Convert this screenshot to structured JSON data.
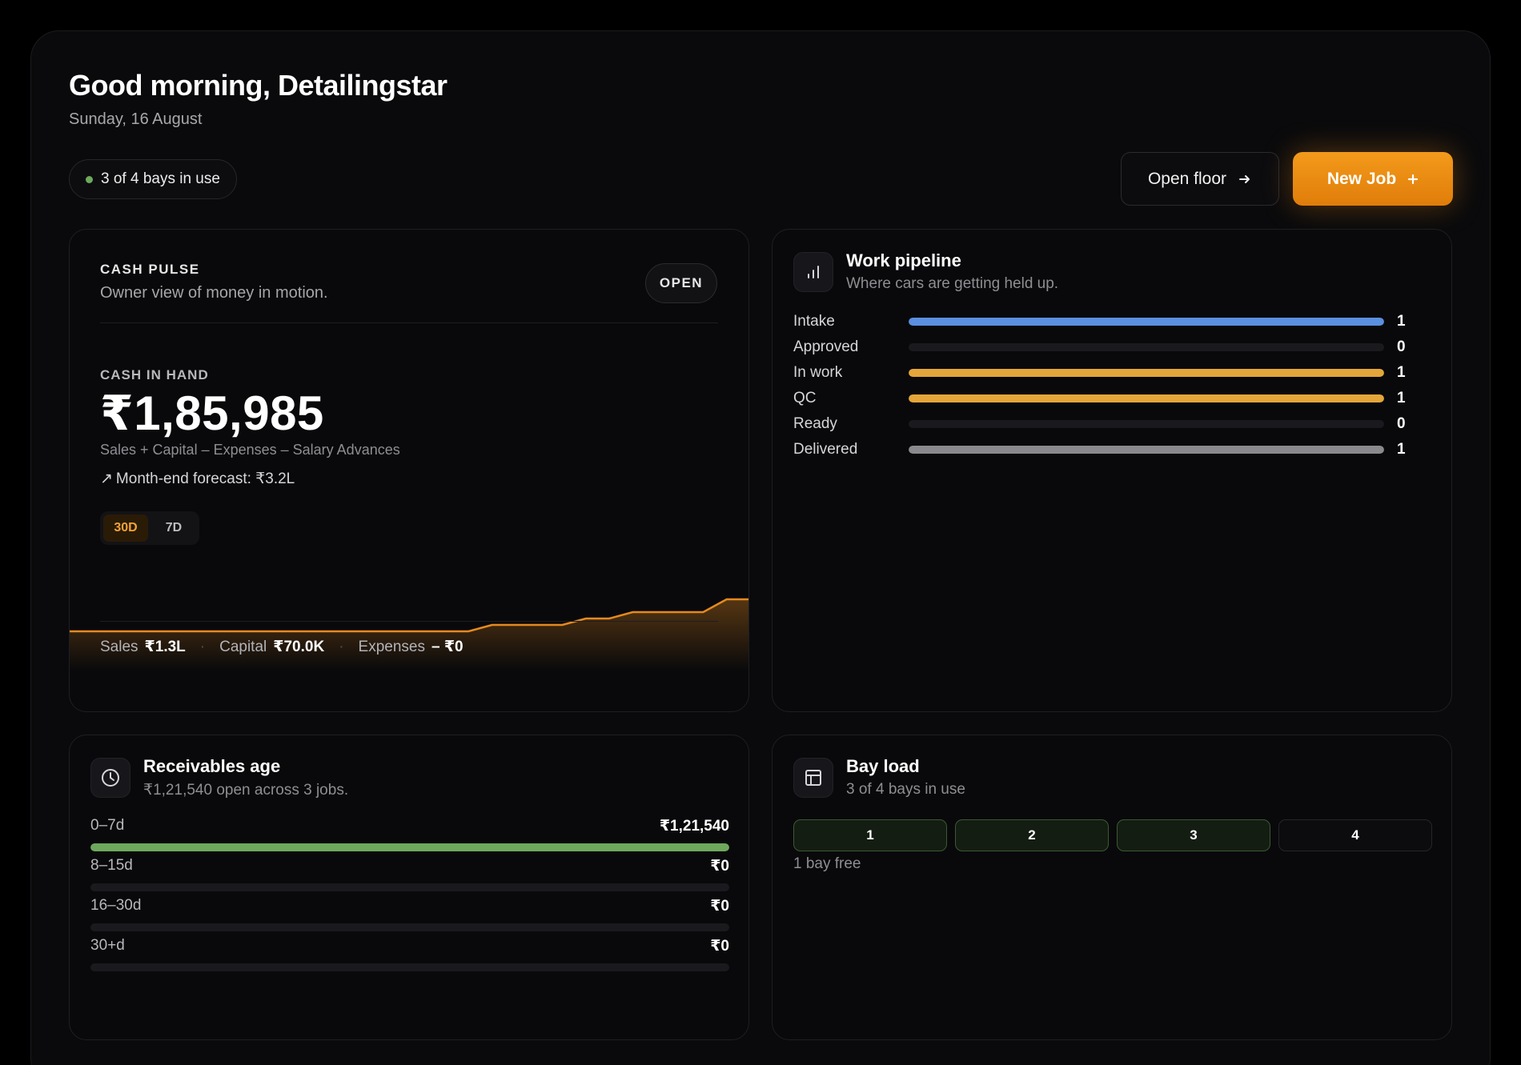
{
  "header": {
    "greeting": "Good morning, Detailingstar",
    "date": "Sunday, 16 August",
    "bay_status": "3 of 4 bays in use",
    "open_floor_label": "Open floor",
    "new_job_label": "New Job",
    "new_job_icon": "plus-icon",
    "open_floor_icon": "arrow-right-icon"
  },
  "cash_pulse": {
    "title": "CASH PULSE",
    "subtitle": "Owner view of money in motion.",
    "open_label": "OPEN",
    "cash_label": "CASH IN HAND",
    "cash_amount": "₹1,85,985",
    "formula": "Sales + Capital – Expenses – Salary Advances",
    "forecast_arrow": "↗",
    "forecast": "Month-end forecast: ₹3.2L",
    "ranges": [
      "30D",
      "7D"
    ],
    "active_range": "30D",
    "accent_color": "#e58a1f",
    "trend": [
      0,
      0,
      0,
      0,
      0,
      0,
      0,
      0,
      0,
      0,
      0,
      0,
      0,
      0,
      0,
      0,
      0,
      0,
      1,
      1,
      1,
      1,
      2,
      2,
      3,
      3,
      3,
      3,
      5,
      5
    ],
    "totals": {
      "sales_label": "Sales",
      "sales_value": "₹1.3L",
      "capital_label": "Capital",
      "capital_value": "₹70.0K",
      "expenses_label": "Expenses",
      "expenses_value": "– ₹0"
    }
  },
  "pipeline": {
    "title": "Work pipeline",
    "subtitle": "Where cars are getting held up.",
    "icon": "bar-chart-icon",
    "stages": [
      {
        "label": "Intake",
        "count": "1",
        "fill": 1,
        "color": "#5b8fe0"
      },
      {
        "label": "Approved",
        "count": "0",
        "fill": 0,
        "color": "#5b8fe0"
      },
      {
        "label": "In work",
        "count": "1",
        "fill": 1,
        "color": "#e4a63a"
      },
      {
        "label": "QC",
        "count": "1",
        "fill": 1,
        "color": "#e4a63a"
      },
      {
        "label": "Ready",
        "count": "0",
        "fill": 0,
        "color": "#6ea85c"
      },
      {
        "label": "Delivered",
        "count": "1",
        "fill": 1,
        "color": "#8a8a8e"
      }
    ]
  },
  "receivables": {
    "title": "Receivables age",
    "subtitle": "₹1,21,540 open across 3 jobs.",
    "icon": "clock-icon",
    "buckets": [
      {
        "label": "0–7d",
        "amount": "₹1,21,540",
        "fill": 1
      },
      {
        "label": "8–15d",
        "amount": "₹0",
        "fill": 0
      },
      {
        "label": "16–30d",
        "amount": "₹0",
        "fill": 0
      },
      {
        "label": "30+d",
        "amount": "₹0",
        "fill": 0
      }
    ]
  },
  "bay_load": {
    "title": "Bay load",
    "subtitle": "3 of 4 bays in use",
    "icon": "layout-icon",
    "bays": [
      {
        "label": "1",
        "busy": true
      },
      {
        "label": "2",
        "busy": true
      },
      {
        "label": "3",
        "busy": true
      },
      {
        "label": "4",
        "busy": false
      }
    ],
    "free_note": "1 bay free"
  }
}
